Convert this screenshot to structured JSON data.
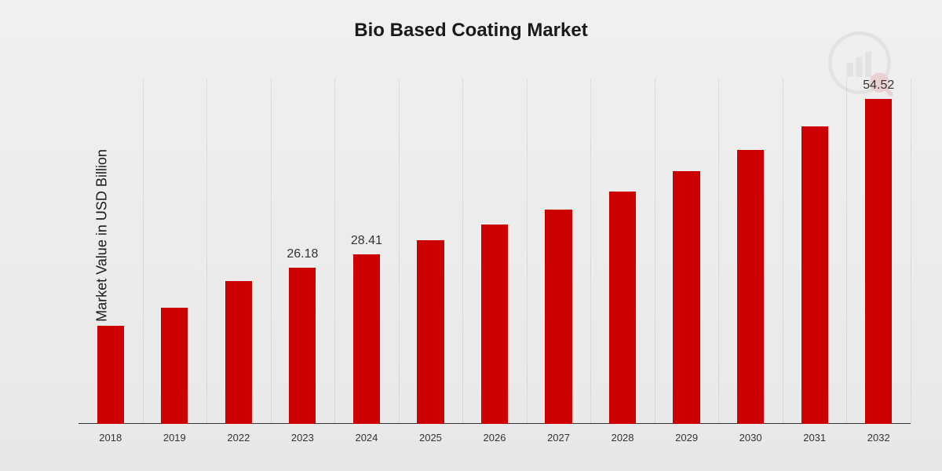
{
  "chart": {
    "title": "Bio Based Coating Market",
    "title_fontsize": 24,
    "ylabel": "Market Value in USD Billion",
    "ylabel_fontsize": 18,
    "categories": [
      "2018",
      "2019",
      "2022",
      "2023",
      "2024",
      "2025",
      "2026",
      "2027",
      "2028",
      "2029",
      "2030",
      "2031",
      "2032"
    ],
    "values": [
      16.5,
      19.5,
      24.0,
      26.18,
      28.41,
      30.8,
      33.5,
      36.0,
      39.0,
      42.5,
      46.0,
      50.0,
      54.52
    ],
    "visible_labels": {
      "3": "26.18",
      "4": "28.41",
      "12": "54.52"
    },
    "bar_color": "#cc0000",
    "bar_width_ratio": 0.42,
    "background_gradient_start": "#f0f0f0",
    "background_gradient_end": "#e8e8e8",
    "gridline_color": "rgba(0,0,0,0.08)",
    "axis_line_color": "#333333",
    "text_color": "#1a1a1a",
    "ylim": [
      0,
      58
    ],
    "x_tick_fontsize": 13,
    "value_label_fontsize": 16
  }
}
